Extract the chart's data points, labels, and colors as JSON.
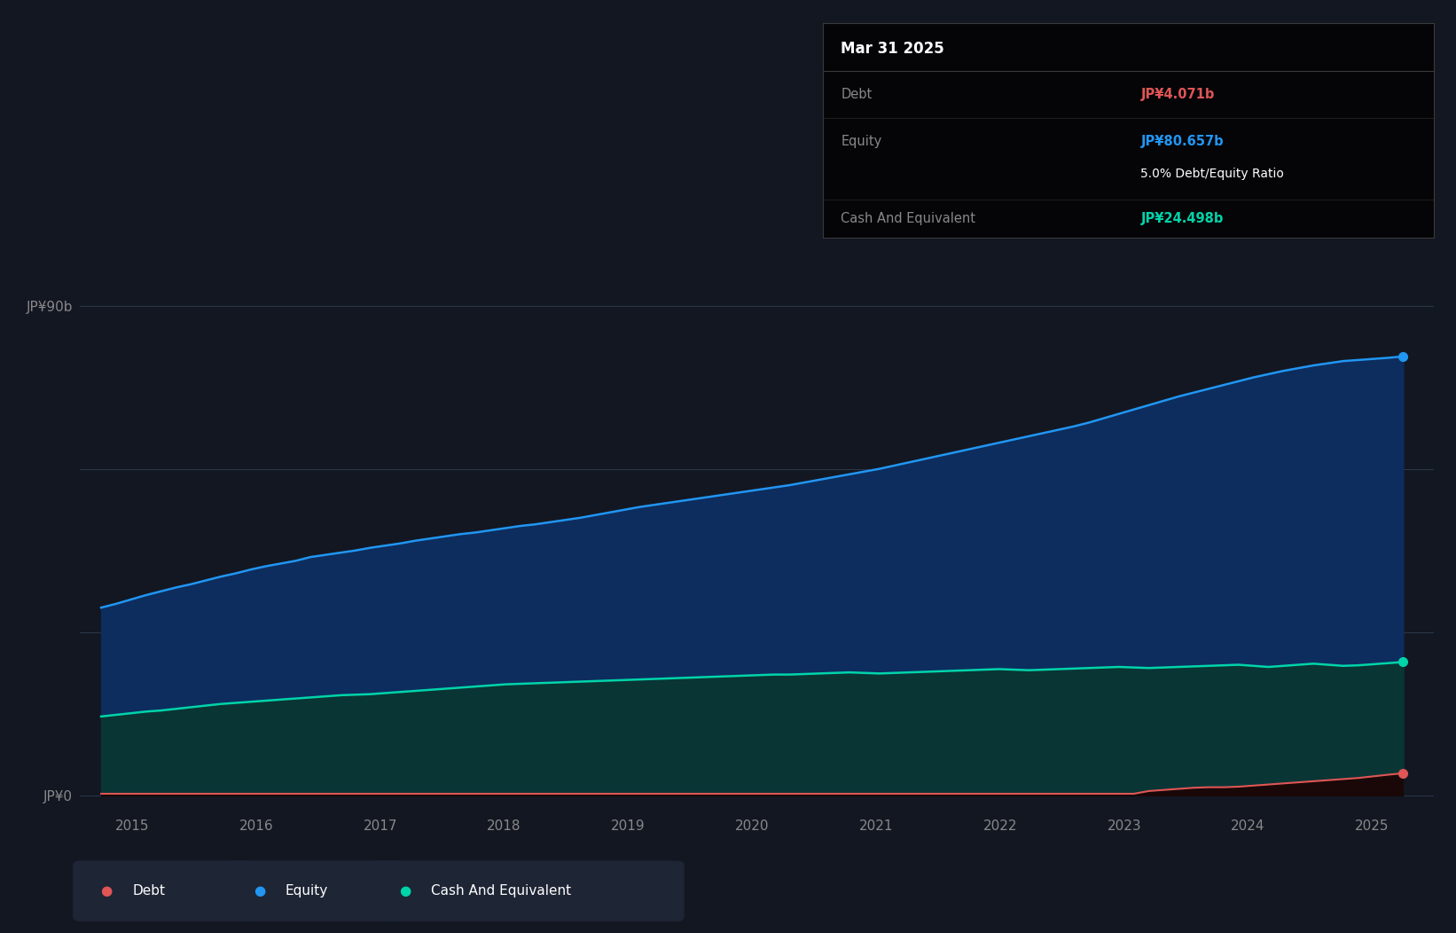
{
  "background_color": "#131722",
  "plot_bg_color": "#131722",
  "grid_color": "#2a3a4a",
  "ylabel_ticks": [
    "JP¥0",
    "JP¥90b"
  ],
  "ytick_values": [
    0,
    90
  ],
  "xlim": [
    2014.58,
    2025.5
  ],
  "ylim": [
    -3,
    105
  ],
  "x_start": 2014.75,
  "x_end": 2025.25,
  "equity_color": "#2196f3",
  "equity_fill_color": "#0d2d5e",
  "cash_color": "#00d4aa",
  "cash_fill_color": "#0a3535",
  "debt_color": "#e05555",
  "debt_fill_color": "#1a0808",
  "tooltip_bg": "#050508",
  "tooltip_title": "Mar 31 2025",
  "tooltip_debt_label": "Debt",
  "tooltip_debt_value": "JP¥4.071b",
  "tooltip_debt_color": "#e05555",
  "tooltip_equity_label": "Equity",
  "tooltip_equity_value": "JP¥80.657b",
  "tooltip_equity_color": "#2196f3",
  "tooltip_ratio_text": "5.0% Debt/Equity Ratio",
  "tooltip_cash_label": "Cash And Equivalent",
  "tooltip_cash_value": "JP¥24.498b",
  "tooltip_cash_color": "#00d4aa",
  "equity_data": [
    34.5,
    35.2,
    36.0,
    36.8,
    37.5,
    38.2,
    38.8,
    39.5,
    40.2,
    40.8,
    41.5,
    42.1,
    42.6,
    43.1,
    43.8,
    44.2,
    44.6,
    45.0,
    45.5,
    45.9,
    46.3,
    46.8,
    47.2,
    47.6,
    48.0,
    48.3,
    48.7,
    49.1,
    49.5,
    49.8,
    50.2,
    50.6,
    51.0,
    51.5,
    52.0,
    52.5,
    53.0,
    53.4,
    53.8,
    54.2,
    54.6,
    55.0,
    55.4,
    55.8,
    56.2,
    56.6,
    57.0,
    57.5,
    58.0,
    58.5,
    59.0,
    59.5,
    60.0,
    60.6,
    61.2,
    61.8,
    62.4,
    63.0,
    63.6,
    64.2,
    64.8,
    65.4,
    66.0,
    66.6,
    67.2,
    67.8,
    68.5,
    69.3,
    70.1,
    70.9,
    71.7,
    72.5,
    73.3,
    74.0,
    74.7,
    75.4,
    76.1,
    76.8,
    77.4,
    78.0,
    78.5,
    79.0,
    79.4,
    79.8,
    80.0,
    80.2,
    80.4,
    80.657
  ],
  "cash_data": [
    14.5,
    14.8,
    15.1,
    15.4,
    15.6,
    15.9,
    16.2,
    16.5,
    16.8,
    17.0,
    17.2,
    17.4,
    17.6,
    17.8,
    18.0,
    18.2,
    18.4,
    18.5,
    18.6,
    18.8,
    19.0,
    19.2,
    19.4,
    19.6,
    19.8,
    20.0,
    20.2,
    20.4,
    20.5,
    20.6,
    20.7,
    20.8,
    20.9,
    21.0,
    21.1,
    21.2,
    21.3,
    21.4,
    21.5,
    21.6,
    21.7,
    21.8,
    21.9,
    22.0,
    22.1,
    22.2,
    22.2,
    22.3,
    22.4,
    22.5,
    22.6,
    22.5,
    22.4,
    22.5,
    22.6,
    22.7,
    22.8,
    22.9,
    23.0,
    23.1,
    23.2,
    23.1,
    23.0,
    23.1,
    23.2,
    23.3,
    23.4,
    23.5,
    23.6,
    23.5,
    23.4,
    23.5,
    23.6,
    23.7,
    23.8,
    23.9,
    24.0,
    23.8,
    23.6,
    23.8,
    24.0,
    24.2,
    24.0,
    23.8,
    23.9,
    24.1,
    24.3,
    24.498
  ],
  "debt_data": [
    0.3,
    0.3,
    0.3,
    0.3,
    0.3,
    0.3,
    0.3,
    0.3,
    0.3,
    0.3,
    0.3,
    0.3,
    0.3,
    0.3,
    0.3,
    0.3,
    0.3,
    0.3,
    0.3,
    0.3,
    0.3,
    0.3,
    0.3,
    0.3,
    0.3,
    0.3,
    0.3,
    0.3,
    0.3,
    0.3,
    0.3,
    0.3,
    0.3,
    0.3,
    0.3,
    0.3,
    0.3,
    0.3,
    0.3,
    0.3,
    0.3,
    0.3,
    0.3,
    0.3,
    0.3,
    0.3,
    0.3,
    0.3,
    0.3,
    0.3,
    0.3,
    0.3,
    0.3,
    0.3,
    0.3,
    0.3,
    0.3,
    0.3,
    0.3,
    0.3,
    0.3,
    0.3,
    0.3,
    0.3,
    0.3,
    0.3,
    0.3,
    0.3,
    0.3,
    0.3,
    0.8,
    1.0,
    1.2,
    1.4,
    1.5,
    1.5,
    1.6,
    1.8,
    2.0,
    2.2,
    2.4,
    2.6,
    2.8,
    3.0,
    3.2,
    3.5,
    3.8,
    4.071
  ],
  "n_points": 88,
  "xticks": [
    2015,
    2016,
    2017,
    2018,
    2019,
    2020,
    2021,
    2022,
    2023,
    2024,
    2025
  ],
  "xtick_labels": [
    "2015",
    "2016",
    "2017",
    "2018",
    "2019",
    "2020",
    "2021",
    "2022",
    "2023",
    "2024",
    "2025"
  ],
  "legend_items": [
    {
      "label": "Debt",
      "color": "#e05555"
    },
    {
      "label": "Equity",
      "color": "#2196f3"
    },
    {
      "label": "Cash And Equivalent",
      "color": "#00d4aa"
    }
  ],
  "legend_box_color": "#1e2535"
}
